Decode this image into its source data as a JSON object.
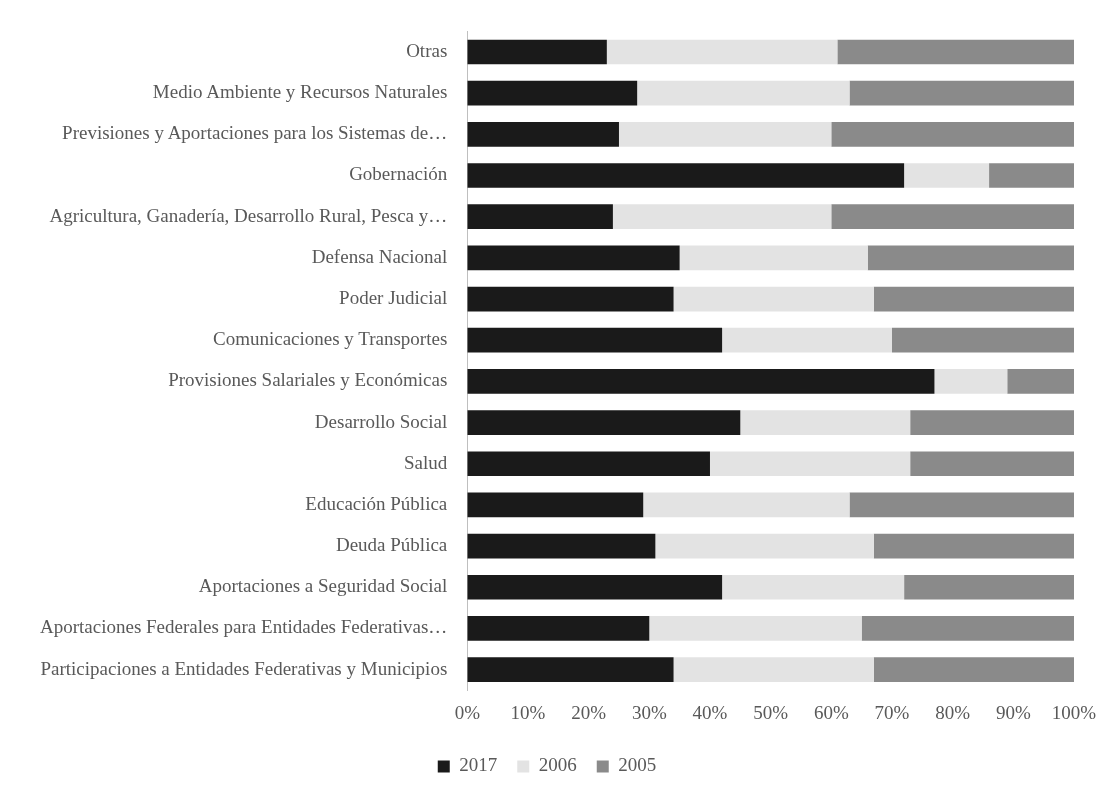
{
  "chart_data": {
    "type": "bar",
    "orientation": "horizontal",
    "stacked": true,
    "categories": [
      "Otras",
      "Medio Ambiente y Recursos Naturales",
      "Previsiones y Aportaciones para los Sistemas de…",
      "Gobernación",
      "Agricultura, Ganadería, Desarrollo Rural, Pesca y…",
      "Defensa Nacional",
      "Poder Judicial",
      "Comunicaciones y Transportes",
      "Provisiones Salariales y Económicas",
      "Desarrollo Social",
      "Salud",
      "Educación Pública",
      "Deuda Pública",
      "Aportaciones a Seguridad Social",
      "Aportaciones Federales para Entidades Federativas…",
      "Participaciones a Entidades Federativas y Municipios"
    ],
    "series": [
      {
        "name": "2017",
        "color": "#1a1a1a",
        "values": [
          23,
          28,
          25,
          72,
          24,
          35,
          34,
          42,
          77,
          45,
          40,
          29,
          31,
          42,
          30,
          34
        ]
      },
      {
        "name": "2006",
        "color": "#e3e3e3",
        "values": [
          38,
          35,
          35,
          14,
          36,
          31,
          33,
          28,
          12,
          28,
          33,
          34,
          36,
          30,
          35,
          33
        ]
      },
      {
        "name": "2005",
        "color": "#8a8a8a",
        "values": [
          39,
          37,
          40,
          14,
          40,
          34,
          33,
          30,
          11,
          27,
          27,
          37,
          33,
          28,
          35,
          33
        ]
      }
    ],
    "xlim": [
      0,
      100
    ],
    "xticks": [
      {
        "value": 0,
        "label": "0%"
      },
      {
        "value": 10,
        "label": "10%"
      },
      {
        "value": 20,
        "label": "20%"
      },
      {
        "value": 30,
        "label": "30%"
      },
      {
        "value": 40,
        "label": "40%"
      },
      {
        "value": 50,
        "label": "50%"
      },
      {
        "value": 60,
        "label": "60%"
      },
      {
        "value": 70,
        "label": "70%"
      },
      {
        "value": 80,
        "label": "80%"
      },
      {
        "value": 90,
        "label": "90%"
      },
      {
        "value": 100,
        "label": "100%"
      }
    ],
    "grid": false,
    "legend": "bottom"
  }
}
